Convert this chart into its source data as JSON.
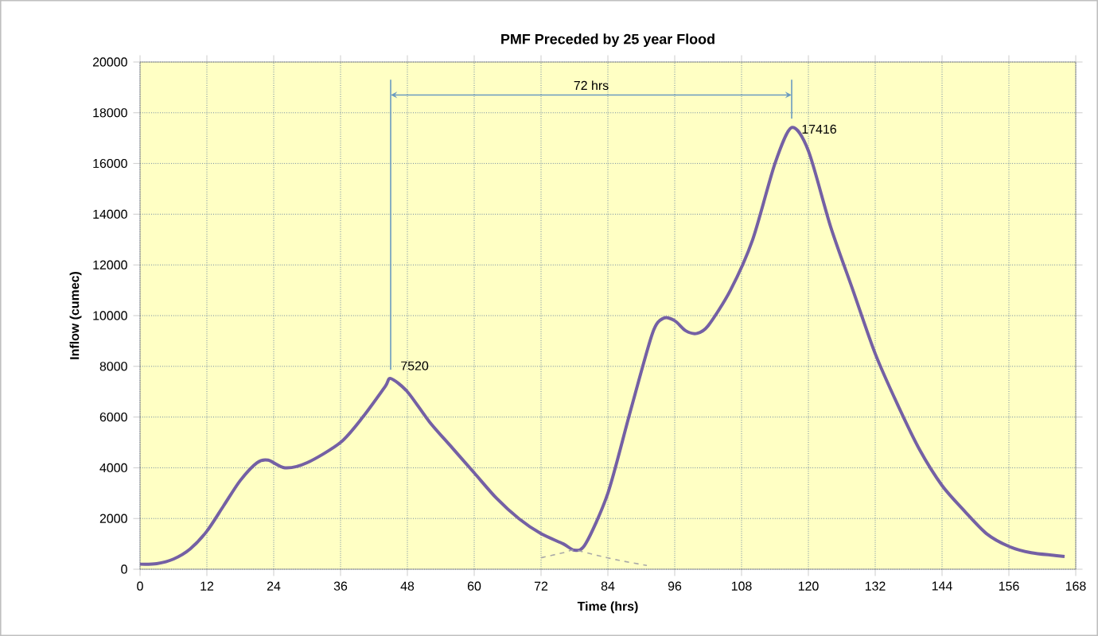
{
  "chart_data": {
    "type": "line",
    "title": "PMF Preceded by 25 year Flood",
    "xlabel": "Time (hrs)",
    "ylabel": "Inflow (cumec)",
    "x": [
      0,
      3,
      6,
      9,
      12,
      15,
      18,
      21,
      23,
      26,
      30,
      36,
      40,
      44,
      45,
      48,
      52,
      56,
      60,
      64,
      68,
      72,
      76,
      78,
      80,
      84,
      88,
      92,
      94,
      96,
      98,
      100,
      102,
      106,
      110,
      114,
      117,
      120,
      124,
      128,
      132,
      136,
      140,
      144,
      148,
      152,
      156,
      160,
      164,
      166
    ],
    "series": [
      {
        "color": "#7460a4",
        "values": [
          200,
          220,
          400,
          800,
          1500,
          2500,
          3500,
          4200,
          4300,
          4000,
          4200,
          5000,
          6000,
          7200,
          7520,
          7000,
          5800,
          4800,
          3800,
          2800,
          2000,
          1400,
          1000,
          750,
          1000,
          3000,
          6200,
          9300,
          9900,
          9800,
          9400,
          9300,
          9600,
          11000,
          13000,
          16000,
          17416,
          16500,
          13500,
          11000,
          8500,
          6500,
          4700,
          3300,
          2300,
          1400,
          900,
          650,
          550,
          500
        ]
      },
      {
        "color": "#a8a8a8",
        "line_style": "dashed",
        "x": [
          72,
          76,
          78,
          82,
          86,
          91
        ],
        "values": [
          450,
          650,
          750,
          550,
          350,
          150
        ]
      }
    ],
    "xlim": [
      0,
      168
    ],
    "ylim": [
      0,
      20000
    ],
    "xticks": [
      0,
      12,
      24,
      36,
      48,
      60,
      72,
      84,
      96,
      108,
      120,
      132,
      144,
      156,
      168
    ],
    "yticks": [
      0,
      2000,
      4000,
      6000,
      8000,
      10000,
      12000,
      14000,
      16000,
      18000,
      20000
    ],
    "grid": true,
    "annotations": [
      {
        "text": "7520",
        "x": 45,
        "y": 7520
      },
      {
        "text": "17416",
        "x": 117,
        "y": 17416
      },
      "72 hrs"
    ]
  }
}
